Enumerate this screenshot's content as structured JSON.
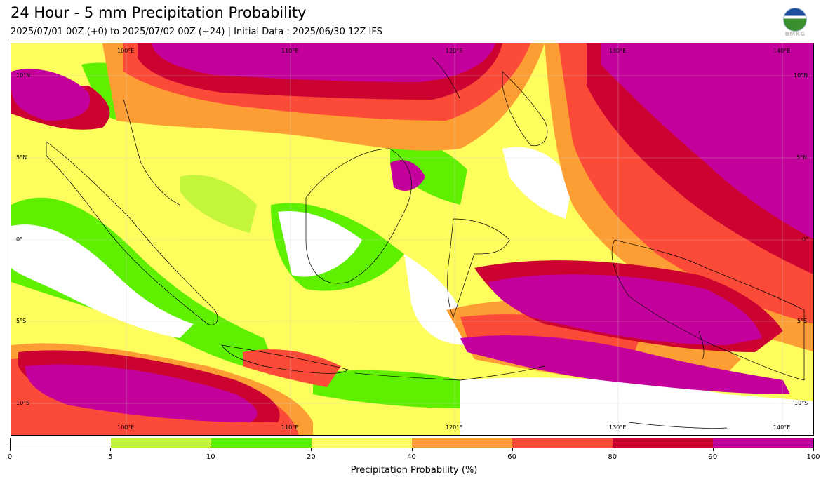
{
  "header": {
    "title": "24 Hour - 5 mm Precipitation Probability",
    "subtitle": "2025/07/01 00Z (+0) to 2025/07/02 00Z (+24) | Initial Data : 2025/06/30 12Z IFS"
  },
  "logo": {
    "text": "BMKG",
    "icon": "bmkg-logo-icon"
  },
  "map": {
    "lon_labels": [
      "100°E",
      "110°E",
      "120°E",
      "130°E",
      "140°E"
    ],
    "lat_labels": [
      "10°N",
      "5°N",
      "0°",
      "5°S",
      "10°S"
    ],
    "lon_range": [
      95,
      144
    ],
    "lat_range": [
      -12,
      12
    ]
  },
  "colorbar": {
    "label": "Precipitation Probability (%)",
    "ticks": [
      "0",
      "5",
      "10",
      "20",
      "40",
      "60",
      "80",
      "90",
      "100"
    ],
    "colors": [
      "#ffffff",
      "#c3f53a",
      "#5ef000",
      "#fdfd5e",
      "#fd9e35",
      "#fb4a38",
      "#cc0231",
      "#c4009c"
    ]
  }
}
